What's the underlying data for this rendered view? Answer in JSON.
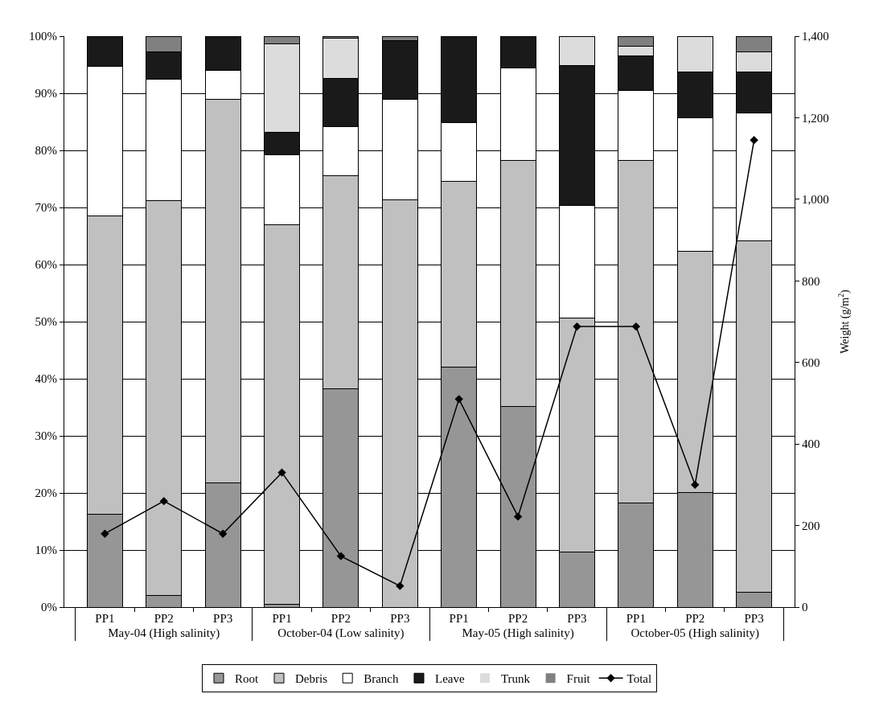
{
  "chart_data": {
    "type": "bar",
    "stacked": true,
    "categories": [
      "PP1",
      "PP2",
      "PP3",
      "PP1",
      "PP2",
      "PP3",
      "PP1",
      "PP2",
      "PP3",
      "PP1",
      "PP2",
      "PP3"
    ],
    "annotations": [
      "May-04 (High salinity)",
      "October-04 (Low salinity)",
      "May-05 (High salinity)",
      "October-05 (High salinity)"
    ],
    "y2label": "Weight (g/m$^{2}$)",
    "series": [
      {
        "name": "Root",
        "color": "#969696",
        "values": [
          16.3,
          2,
          21.7,
          0.5,
          38.2,
          0,
          42.1,
          35.1,
          9.7,
          18.3,
          20.1,
          2.6
        ]
      },
      {
        "name": "Debris",
        "color": "#c0c0c0",
        "values": [
          52.2,
          69.2,
          67.2,
          66.5,
          37.3,
          71.3,
          32.5,
          43.2,
          40.9,
          59.9,
          42.2,
          61.6
        ]
      },
      {
        "name": "Branch",
        "color": "#ffffff",
        "values": [
          26.2,
          21.3,
          5.1,
          12.2,
          8.7,
          17.7,
          10.2,
          16.2,
          19.8,
          12.3,
          23.4,
          22.3
        ]
      },
      {
        "name": "Leave",
        "color": "#1a1a1a",
        "values": [
          5.3,
          4.8,
          6,
          4,
          8.4,
          10.2,
          15.2,
          5.5,
          24.4,
          6,
          8,
          7.2
        ]
      },
      {
        "name": "Trunk",
        "color": "#dcdcdc",
        "values": [
          0,
          0,
          0,
          15.4,
          7.1,
          0,
          0,
          0,
          5.2,
          1.8,
          6.3,
          3.6
        ]
      },
      {
        "name": "Fruit",
        "color": "#808080",
        "values": [
          0,
          2.7,
          0,
          1.4,
          0.3,
          0.8,
          0,
          0,
          0,
          1.7,
          0,
          2.7
        ]
      },
      {
        "name": "Total",
        "type": "line",
        "axis": "y2",
        "color": "#000000",
        "marker": "diamond",
        "line_style": "solid",
        "values": [
          180,
          260,
          180,
          330,
          125,
          52,
          510,
          222,
          688,
          688,
          300,
          1145
        ]
      }
    ],
    "ylim": [
      0,
      100
    ],
    "yticks": [
      {
        "value": 0,
        "label": "0%"
      },
      {
        "value": 10,
        "label": "10%"
      },
      {
        "value": 20,
        "label": "20%"
      },
      {
        "value": 30,
        "label": "30%"
      },
      {
        "value": 40,
        "label": "40%"
      },
      {
        "value": 50,
        "label": "50%"
      },
      {
        "value": 60,
        "label": "60%"
      },
      {
        "value": 70,
        "label": "70%"
      },
      {
        "value": 80,
        "label": "80%"
      },
      {
        "value": 90,
        "label": "90%"
      },
      {
        "value": 100,
        "label": "100%"
      }
    ],
    "y2lim": [
      0,
      1400
    ],
    "y2ticks": [
      0,
      {
        "value": 200,
        "label": "200"
      },
      {
        "value": 400,
        "label": "400"
      },
      {
        "value": 600,
        "label": "600"
      },
      {
        "value": 800,
        "label": "800"
      },
      {
        "value": 1000,
        "label": "1,000"
      },
      {
        "value": 1200,
        "label": "1,200"
      },
      {
        "value": 1400,
        "label": "1,400"
      }
    ],
    "grid": "y",
    "legend": "bottom"
  }
}
